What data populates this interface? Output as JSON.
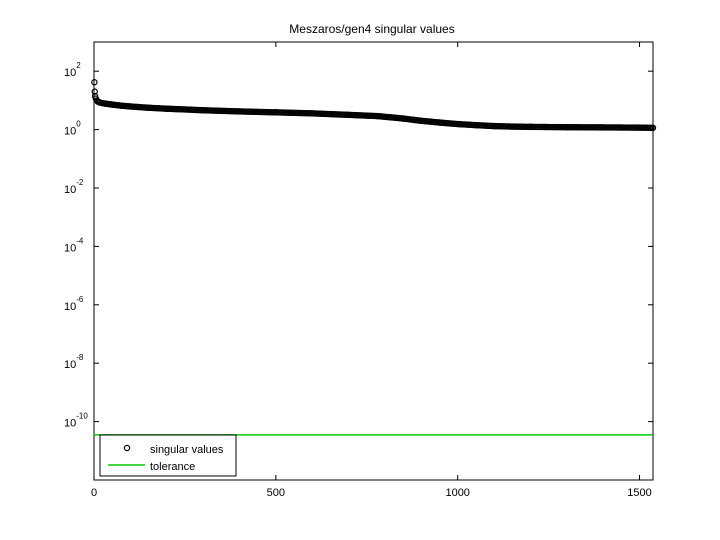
{
  "chart_data": {
    "type": "scatter",
    "title": "Meszaros/gen4 singular values",
    "xlabel": "",
    "ylabel": "",
    "x_scale": "linear",
    "y_scale": "log",
    "xlim": [
      0,
      1537
    ],
    "ylim": [
      1e-12,
      1000
    ],
    "xticks": [
      0,
      500,
      1000,
      1500
    ],
    "xtick_labels": [
      "0",
      "500",
      "1000",
      "1500"
    ],
    "yticks": [
      {
        "base": "10",
        "exp": "2",
        "value": 100
      },
      {
        "base": "10",
        "exp": "0",
        "value": 1
      },
      {
        "base": "10",
        "exp": "-2",
        "value": 0.01
      },
      {
        "base": "10",
        "exp": "-4",
        "value": 0.0001
      },
      {
        "base": "10",
        "exp": "-6",
        "value": 1e-06
      },
      {
        "base": "10",
        "exp": "-8",
        "value": 1e-08
      },
      {
        "base": "10",
        "exp": "-10",
        "value": 1e-10
      }
    ],
    "grid": false,
    "legend_position": "bottom-left",
    "series": [
      {
        "name": "singular values",
        "style": "markers",
        "marker": "circle",
        "color": "#000000",
        "x": [
          1,
          2,
          3,
          5,
          8,
          10,
          15,
          20,
          30,
          50,
          75,
          100,
          150,
          200,
          250,
          300,
          400,
          500,
          600,
          700,
          780,
          850,
          900,
          950,
          1000,
          1050,
          1100,
          1150,
          1200,
          1300,
          1400,
          1500,
          1537
        ],
        "y": [
          42,
          20,
          14,
          11.5,
          10,
          9.2,
          8.6,
          8.2,
          7.8,
          7.2,
          6.6,
          6.2,
          5.6,
          5.2,
          4.9,
          4.6,
          4.2,
          3.9,
          3.6,
          3.2,
          2.9,
          2.4,
          2.0,
          1.75,
          1.55,
          1.42,
          1.32,
          1.27,
          1.24,
          1.21,
          1.19,
          1.17,
          1.15
        ]
      },
      {
        "name": "tolerance",
        "style": "line",
        "color": "#00cc00",
        "x": [
          0,
          1537
        ],
        "y": [
          3.5e-11,
          3.5e-11
        ]
      }
    ]
  }
}
